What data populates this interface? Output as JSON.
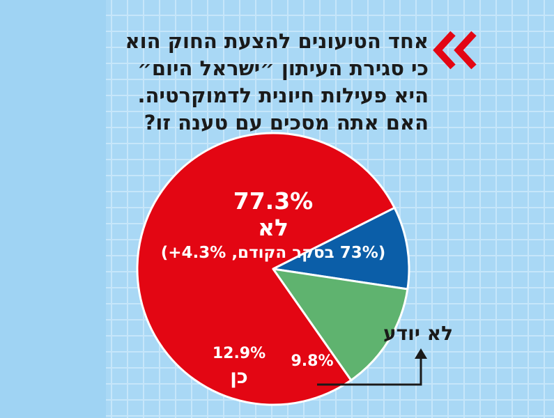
{
  "question": "אחד הטיעונים להצעת החוק הוא כי סגירת העיתון ״ישראל היום״ היא פעילות חיונית לדמוקרטיה. האם אתה מסכים עם טענה זו?",
  "chart_data": {
    "type": "pie",
    "slices": [
      {
        "label": "לא",
        "value": 77.3,
        "value_label": "77.3%",
        "note": "(73% בסקר הקודם, 4.3%+)",
        "color": "#e30613"
      },
      {
        "label": "לא יודע",
        "value": 9.8,
        "value_label": "9.8%",
        "color": "#0b5ea8"
      },
      {
        "label": "כן",
        "value": 12.9,
        "value_label": "12.9%",
        "color": "#5fb36f"
      }
    ]
  },
  "colors": {
    "accent": "#e30613",
    "background": "#a9d8f5"
  },
  "icons": {
    "header": "double-chevron-left-icon"
  }
}
